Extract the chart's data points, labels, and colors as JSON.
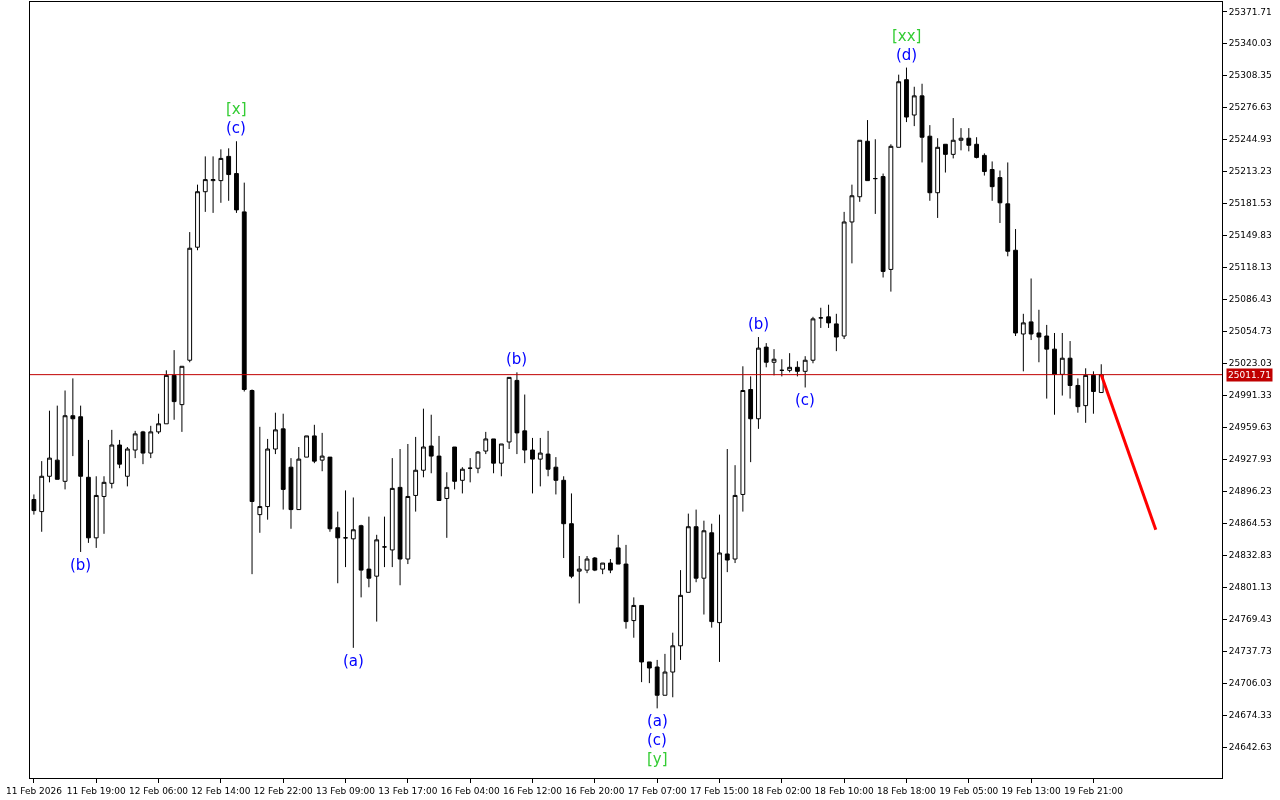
{
  "chart_data": {
    "type": "candlestick",
    "categories": [
      "11 Feb 2026",
      null,
      null,
      null,
      null,
      null,
      null,
      null,
      "11 Feb 19:00",
      null,
      null,
      null,
      null,
      null,
      null,
      null,
      "12 Feb 06:00",
      null,
      null,
      null,
      null,
      null,
      null,
      null,
      "12 Feb 14:00",
      null,
      null,
      null,
      null,
      null,
      null,
      null,
      "12 Feb 22:00",
      null,
      null,
      null,
      null,
      null,
      null,
      null,
      "13 Feb 09:00",
      null,
      null,
      null,
      null,
      null,
      null,
      null,
      "13 Feb 17:00",
      null,
      null,
      null,
      null,
      null,
      null,
      null,
      "16 Feb 04:00",
      null,
      null,
      null,
      null,
      null,
      null,
      null,
      "16 Feb 12:00",
      null,
      null,
      null,
      null,
      null,
      null,
      null,
      "16 Feb 20:00",
      null,
      null,
      null,
      null,
      null,
      null,
      null,
      "17 Feb 07:00",
      null,
      null,
      null,
      null,
      null,
      null,
      null,
      "17 Feb 15:00",
      null,
      null,
      null,
      null,
      null,
      null,
      null,
      "18 Feb 02:00",
      null,
      null,
      null,
      null,
      null,
      null,
      null,
      "18 Feb 10:00",
      null,
      null,
      null,
      null,
      null,
      null,
      null,
      "18 Feb 18:00",
      null,
      null,
      null,
      null,
      null,
      null,
      null,
      "19 Feb 05:00",
      null,
      null,
      null,
      null,
      null,
      null,
      null,
      "19 Feb 13:00",
      null,
      null,
      null,
      null,
      null,
      null,
      null,
      "19 Feb 21:00",
      null,
      null,
      null,
      null,
      null,
      null,
      null,
      null,
      null,
      null,
      null,
      null,
      null,
      null,
      null,
      null
    ],
    "ohlc": [
      [
        24888,
        24893,
        24873,
        24877
      ],
      [
        24876,
        24926,
        24856,
        24911
      ],
      [
        24911,
        24976,
        24905,
        24929
      ],
      [
        24927,
        24981,
        24908,
        24908
      ],
      [
        24906,
        24996,
        24898,
        24971
      ],
      [
        24971,
        25008,
        24931,
        24968
      ],
      [
        24970,
        24981,
        24836,
        24911
      ],
      [
        24910,
        24947,
        24845,
        24850
      ],
      [
        24850,
        24911,
        24840,
        24892
      ],
      [
        24891,
        24911,
        24854,
        24905
      ],
      [
        24904,
        24957,
        24899,
        24942
      ],
      [
        24942,
        24947,
        24919,
        24923
      ],
      [
        24911,
        24940,
        24901,
        24938
      ],
      [
        24937,
        24956,
        24929,
        24953
      ],
      [
        24955,
        24956,
        24923,
        24934
      ],
      [
        24934,
        24961,
        24929,
        24955
      ],
      [
        24955,
        24973,
        24953,
        24963
      ],
      [
        24963,
        25016,
        24963,
        25011
      ],
      [
        25011,
        25036,
        24967,
        24985
      ],
      [
        24982,
        25020,
        24955,
        25020
      ],
      [
        25026,
        25153,
        25024,
        25137
      ],
      [
        25138,
        25200,
        25135,
        25193
      ],
      [
        25193,
        25228,
        25173,
        25205
      ],
      [
        25204,
        25228,
        25172,
        25205
      ],
      [
        25204,
        25235,
        25182,
        25226
      ],
      [
        25228,
        25236,
        25184,
        25210
      ],
      [
        25211,
        25243,
        25172,
        25175
      ],
      [
        25173,
        25202,
        24995,
        24997
      ],
      [
        24996,
        24997,
        24814,
        24886
      ],
      [
        24873,
        24960,
        24855,
        24881
      ],
      [
        24881,
        24948,
        24868,
        24938
      ],
      [
        24938,
        24974,
        24933,
        24957
      ],
      [
        24958,
        24973,
        24878,
        24898
      ],
      [
        24920,
        24929,
        24859,
        24878
      ],
      [
        24878,
        24940,
        24878,
        24928
      ],
      [
        24930,
        24951,
        24930,
        24951
      ],
      [
        24951,
        24962,
        24924,
        24926
      ],
      [
        24927,
        24954,
        24916,
        24931
      ],
      [
        24930,
        24930,
        24856,
        24859
      ],
      [
        24860,
        24876,
        24805,
        24850
      ],
      [
        24850,
        24897,
        24821,
        24850
      ],
      [
        24849,
        24890,
        24741,
        24858
      ],
      [
        24862,
        24863,
        24791,
        24818
      ],
      [
        24819,
        24871,
        24801,
        24810
      ],
      [
        24812,
        24853,
        24767,
        24848
      ],
      [
        24841,
        24871,
        24821,
        24841
      ],
      [
        24838,
        24929,
        24821,
        24899
      ],
      [
        24900,
        24938,
        24803,
        24829
      ],
      [
        24829,
        24943,
        24824,
        24891
      ],
      [
        24892,
        24950,
        24876,
        24917
      ],
      [
        24917,
        24978,
        24910,
        24940
      ],
      [
        24941,
        24972,
        24914,
        24931
      ],
      [
        24931,
        24951,
        24887,
        24887
      ],
      [
        24889,
        24915,
        24850,
        24900
      ],
      [
        24940,
        24940,
        24898,
        24906
      ],
      [
        24907,
        24920,
        24894,
        24918
      ],
      [
        24919,
        24929,
        24905,
        24919
      ],
      [
        24919,
        24936,
        24914,
        24935
      ],
      [
        24936,
        24955,
        24933,
        24948
      ],
      [
        24948,
        24948,
        24914,
        24924
      ],
      [
        24924,
        24943,
        24911,
        24943
      ],
      [
        24945,
        25009,
        24938,
        25009
      ],
      [
        25006,
        25014,
        24933,
        24954
      ],
      [
        24956,
        24992,
        24924,
        24937
      ],
      [
        24937,
        24949,
        24894,
        24928
      ],
      [
        24928,
        24949,
        24901,
        24934
      ],
      [
        24933,
        24956,
        24911,
        24918
      ],
      [
        24920,
        24930,
        24893,
        24907
      ],
      [
        24907,
        24911,
        24830,
        24864
      ],
      [
        24864,
        24894,
        24810,
        24812
      ],
      [
        24817,
        24832,
        24785,
        24819
      ],
      [
        24818,
        24832,
        24815,
        24829
      ],
      [
        24830,
        24831,
        24817,
        24818
      ],
      [
        24819,
        24825,
        24814,
        24825
      ],
      [
        24825,
        24829,
        24815,
        24818
      ],
      [
        24840,
        24853,
        24824,
        24824
      ],
      [
        24824,
        24843,
        24760,
        24767
      ],
      [
        24768,
        24791,
        24751,
        24783
      ],
      [
        24783,
        24783,
        24707,
        24727
      ],
      [
        24727,
        24727,
        24706,
        24721
      ],
      [
        24722,
        24729,
        24681,
        24694
      ],
      [
        24694,
        24735,
        24694,
        24717
      ],
      [
        24717,
        24756,
        24692,
        24743
      ],
      [
        24743,
        24818,
        24729,
        24793
      ],
      [
        24796,
        24874,
        24796,
        24861
      ],
      [
        24861,
        24878,
        24806,
        24810
      ],
      [
        24810,
        24867,
        24774,
        24857
      ],
      [
        24855,
        24864,
        24761,
        24767
      ],
      [
        24766,
        24873,
        24727,
        24835
      ],
      [
        24834,
        24938,
        24816,
        24828
      ],
      [
        24829,
        24922,
        24825,
        24892
      ],
      [
        24893,
        25020,
        24876,
        24996
      ],
      [
        24997,
        25010,
        24925,
        24968
      ],
      [
        24968,
        25049,
        24958,
        25038
      ],
      [
        25039,
        25043,
        25019,
        25024
      ],
      [
        25024,
        25037,
        25011,
        25027
      ],
      [
        25016,
        25027,
        25010,
        25016
      ],
      [
        25016,
        25033,
        25014,
        25019
      ],
      [
        25019,
        25025,
        25010,
        25015
      ],
      [
        25015,
        25030,
        24999,
        25026
      ],
      [
        25026,
        25069,
        25023,
        25067
      ],
      [
        25068,
        25078,
        25058,
        25068
      ],
      [
        25069,
        25081,
        25058,
        25063
      ],
      [
        25062,
        25072,
        25035,
        25049
      ],
      [
        25050,
        25173,
        25047,
        25163
      ],
      [
        25163,
        25200,
        25122,
        25189
      ],
      [
        25188,
        25244,
        25183,
        25244
      ],
      [
        25243,
        25264,
        25204,
        25204
      ],
      [
        25206,
        25245,
        25171,
        25206
      ],
      [
        25208,
        25211,
        25108,
        25114
      ],
      [
        25116,
        25240,
        25094,
        25238
      ],
      [
        25237,
        25309,
        25237,
        25302
      ],
      [
        25304,
        25316,
        25262,
        25267
      ],
      [
        25269,
        25297,
        25258,
        25288
      ],
      [
        25288,
        25300,
        25222,
        25247
      ],
      [
        25248,
        25259,
        25184,
        25192
      ],
      [
        25192,
        25246,
        25167,
        25237
      ],
      [
        25240,
        25240,
        25212,
        25230
      ],
      [
        25230,
        25266,
        25226,
        25244
      ],
      [
        25244,
        25256,
        25234,
        25246
      ],
      [
        25246,
        25256,
        25233,
        25239
      ],
      [
        25240,
        25247,
        25226,
        25227
      ],
      [
        25229,
        25231,
        25209,
        25213
      ],
      [
        25215,
        25223,
        25184,
        25198
      ],
      [
        25207,
        25214,
        25162,
        25182
      ],
      [
        25181,
        25222,
        25129,
        25134
      ],
      [
        25135,
        25156,
        25050,
        25053
      ],
      [
        25052,
        25072,
        25015,
        25063
      ],
      [
        25064,
        25107,
        25046,
        25052
      ],
      [
        25053,
        25076,
        25024,
        25049
      ],
      [
        25050,
        25061,
        24988,
        25037
      ],
      [
        25037,
        25053,
        24972,
        25012
      ],
      [
        25012,
        25053,
        24991,
        25028
      ],
      [
        25028,
        25045,
        24988,
        25001
      ],
      [
        25001,
        25008,
        24974,
        24980
      ],
      [
        24981,
        25018,
        24964,
        25011
      ],
      [
        25011,
        25015,
        24973,
        24995
      ],
      [
        24994,
        25022,
        24994,
        25011.71
      ],
      null,
      null,
      null,
      null,
      null,
      null,
      null,
      null,
      null,
      null,
      null,
      null,
      null,
      null,
      null
    ],
    "series": [
      {
        "type": "line",
        "color": "#ff0000",
        "values": [
          null,
          null,
          null,
          null,
          null,
          null,
          null,
          null,
          null,
          null,
          null,
          null,
          null,
          null,
          null,
          null,
          null,
          null,
          null,
          null,
          null,
          null,
          null,
          null,
          null,
          null,
          null,
          null,
          null,
          null,
          null,
          null,
          null,
          null,
          null,
          null,
          null,
          null,
          null,
          null,
          null,
          null,
          null,
          null,
          null,
          null,
          null,
          null,
          null,
          null,
          null,
          null,
          null,
          null,
          null,
          null,
          null,
          null,
          null,
          null,
          null,
          null,
          null,
          null,
          null,
          null,
          null,
          null,
          null,
          null,
          null,
          null,
          null,
          null,
          null,
          null,
          null,
          null,
          null,
          null,
          null,
          null,
          null,
          null,
          null,
          null,
          null,
          null,
          null,
          null,
          null,
          null,
          null,
          null,
          null,
          null,
          null,
          null,
          null,
          null,
          null,
          null,
          null,
          null,
          null,
          null,
          null,
          null,
          null,
          null,
          null,
          null,
          null,
          null,
          null,
          null,
          null,
          null,
          null,
          null,
          null,
          null,
          null,
          null,
          null,
          null,
          null,
          null,
          null,
          null,
          null,
          null,
          null,
          null,
          null,
          null,
          null,
          25011.71,
          null,
          null,
          null,
          null,
          null,
          null,
          24858,
          null,
          null,
          null,
          null,
          null,
          null,
          null,
          null
        ]
      }
    ],
    "ylim": [
      24612,
      25381
    ],
    "yticks": [
      25371.71,
      25340.03,
      25308.35,
      25276.63,
      25244.93,
      25213.23,
      25181.53,
      25149.83,
      25118.13,
      25086.43,
      25054.73,
      25023.03,
      24991.33,
      24959.63,
      24927.93,
      24896.23,
      24864.53,
      24832.83,
      24801.13,
      24769.43,
      24737.73,
      24706.03,
      24674.33,
      24642.63
    ],
    "ref_lines": [
      {
        "axis": "y",
        "value": 25011.71,
        "label": "25011.71",
        "color": "#c00000"
      }
    ],
    "annotations": [
      {
        "text": "(b)",
        "y": 24836
      },
      {
        "text": "(c)",
        "y": 25243
      },
      {
        "text": "[x]",
        "y": 25243
      },
      {
        "text": "(a)",
        "y": 24741
      },
      {
        "text": "(b)",
        "y": 25014
      },
      {
        "text": "(a)",
        "y": 24681
      },
      {
        "text": "(c)",
        "y": 24681
      },
      {
        "text": "[y]",
        "y": 24681
      },
      {
        "text": "(b)",
        "y": 25049
      },
      {
        "text": "(c)",
        "y": 24999
      },
      {
        "text": "(d)",
        "y": 25316
      },
      {
        "text": "[xx]",
        "y": 25316
      }
    ]
  }
}
